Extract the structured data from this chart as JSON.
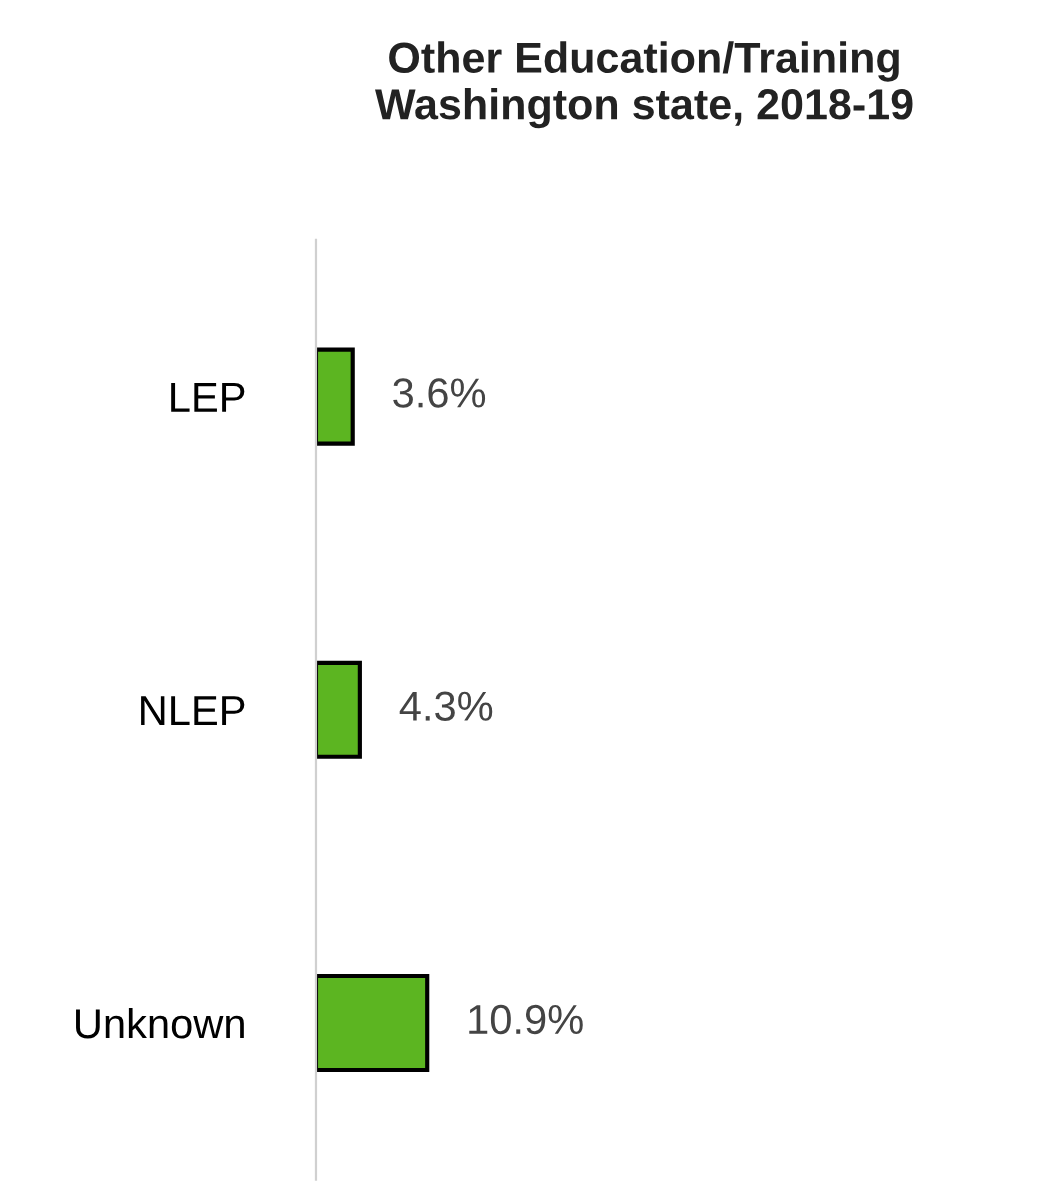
{
  "chart_data": {
    "type": "bar",
    "orientation": "horizontal",
    "title": "Other Education/Training\nWashington state, 2018-19",
    "categories": [
      "LEP",
      "NLEP",
      "Unknown"
    ],
    "values": [
      3.6,
      4.3,
      10.9
    ],
    "color": "#5cb521",
    "value_labels": [
      "3.6%",
      "4.3%",
      "10.9%"
    ],
    "tick_labels": "y",
    "grid": false,
    "legend": false
  }
}
